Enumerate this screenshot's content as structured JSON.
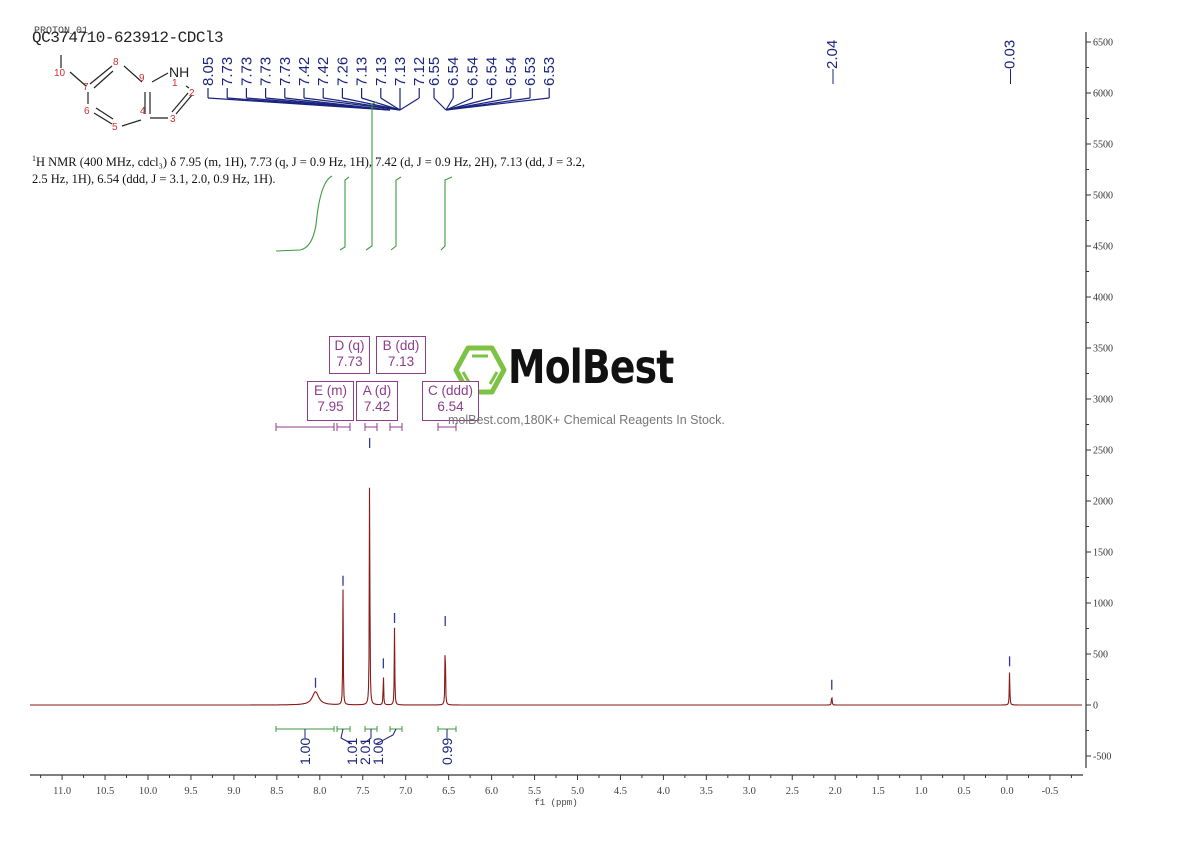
{
  "header": {
    "experiment_label": "PROTON_01",
    "sample_title": "QC374710-623912-CDCl3"
  },
  "structure": {
    "atom_labels": [
      "1",
      "2",
      "3",
      "4",
      "5",
      "6",
      "7",
      "8",
      "9",
      "10"
    ],
    "heteroatom": "NH",
    "compound": "7-methylindole (drawn with atom numbering)"
  },
  "description": {
    "prefix_sup": "1",
    "text": "H NMR (400 MHz, cdcl₃) δ 7.95 (m, 1H), 7.73 (q, J = 0.9 Hz, 1H), 7.42 (d, J = 0.9 Hz, 2H), 7.13 (dd, J = 3.2, 2.5 Hz, 1H), 6.54 (ddd, J = 3.1, 2.0, 0.9 Hz, 1H)."
  },
  "watermark": {
    "brand": "MolBest",
    "tagline": "molBest.com,180K+ Chemical Reagents In Stock.",
    "logo_color": "#7dc242"
  },
  "colors": {
    "spectrum": "#8b1a1a",
    "peak_label": "#1a237e",
    "integral": "#3c9a3c",
    "multiplet": "#8c3d8c",
    "axis": "#333333"
  },
  "chart_data": {
    "type": "line",
    "title": "QC374710-623912-CDCl3",
    "xlabel": "f1 (ppm)",
    "ylabel": "",
    "xlim": [
      11.3,
      -0.8
    ],
    "ylim": [
      -600,
      6600
    ],
    "x_reversed": true,
    "x_ticks": [
      "11.0",
      "10.5",
      "10.0",
      "9.5",
      "9.0",
      "8.5",
      "8.0",
      "7.5",
      "7.0",
      "6.5",
      "6.0",
      "5.5",
      "5.0",
      "4.5",
      "4.0",
      "3.5",
      "3.0",
      "2.5",
      "2.0",
      "1.5",
      "1.0",
      "0.5",
      "0.0",
      "-0.5"
    ],
    "y_ticks": [
      "6500",
      "6000",
      "5500",
      "5000",
      "4500",
      "4000",
      "3500",
      "3000",
      "2500",
      "2000",
      "1500",
      "1000",
      "500",
      "0",
      "-500"
    ],
    "y_axis_position": "right",
    "grid": false,
    "peaks": [
      {
        "ppm": 8.05,
        "intensity": 130,
        "width": "broad"
      },
      {
        "ppm": 7.73,
        "intensity": 1130
      },
      {
        "ppm": 7.42,
        "intensity": 2480
      },
      {
        "ppm": 7.26,
        "intensity": 320
      },
      {
        "ppm": 7.13,
        "intensity": 765
      },
      {
        "ppm": 6.54,
        "intensity": 735
      },
      {
        "ppm": 2.04,
        "intensity": 110
      },
      {
        "ppm": -0.03,
        "intensity": 340
      }
    ],
    "peak_labels": [
      "8.05",
      "7.73",
      "7.73",
      "7.73",
      "7.73",
      "7.42",
      "7.42",
      "7.26",
      "7.13",
      "7.13",
      "7.13",
      "7.12",
      "6.55",
      "6.54",
      "6.54",
      "6.54",
      "6.54",
      "6.53",
      "6.53",
      "2.04",
      "-0.03"
    ],
    "multiplets": [
      {
        "id": "D",
        "type": "q",
        "shift": "7.73"
      },
      {
        "id": "B",
        "type": "dd",
        "shift": "7.13"
      },
      {
        "id": "E",
        "type": "m",
        "shift": "7.95"
      },
      {
        "id": "A",
        "type": "d",
        "shift": "7.42"
      },
      {
        "id": "C",
        "type": "ddd",
        "shift": "6.54"
      }
    ],
    "integrals": [
      {
        "range": [
          8.55,
          7.8
        ],
        "value": "1.00"
      },
      {
        "range": [
          7.8,
          7.65
        ],
        "value": "1.01"
      },
      {
        "range": [
          7.5,
          7.35
        ],
        "value": "2.01"
      },
      {
        "range": [
          7.22,
          7.06
        ],
        "value": "1.00"
      },
      {
        "range": [
          6.62,
          6.45
        ],
        "value": "0.99"
      }
    ]
  }
}
